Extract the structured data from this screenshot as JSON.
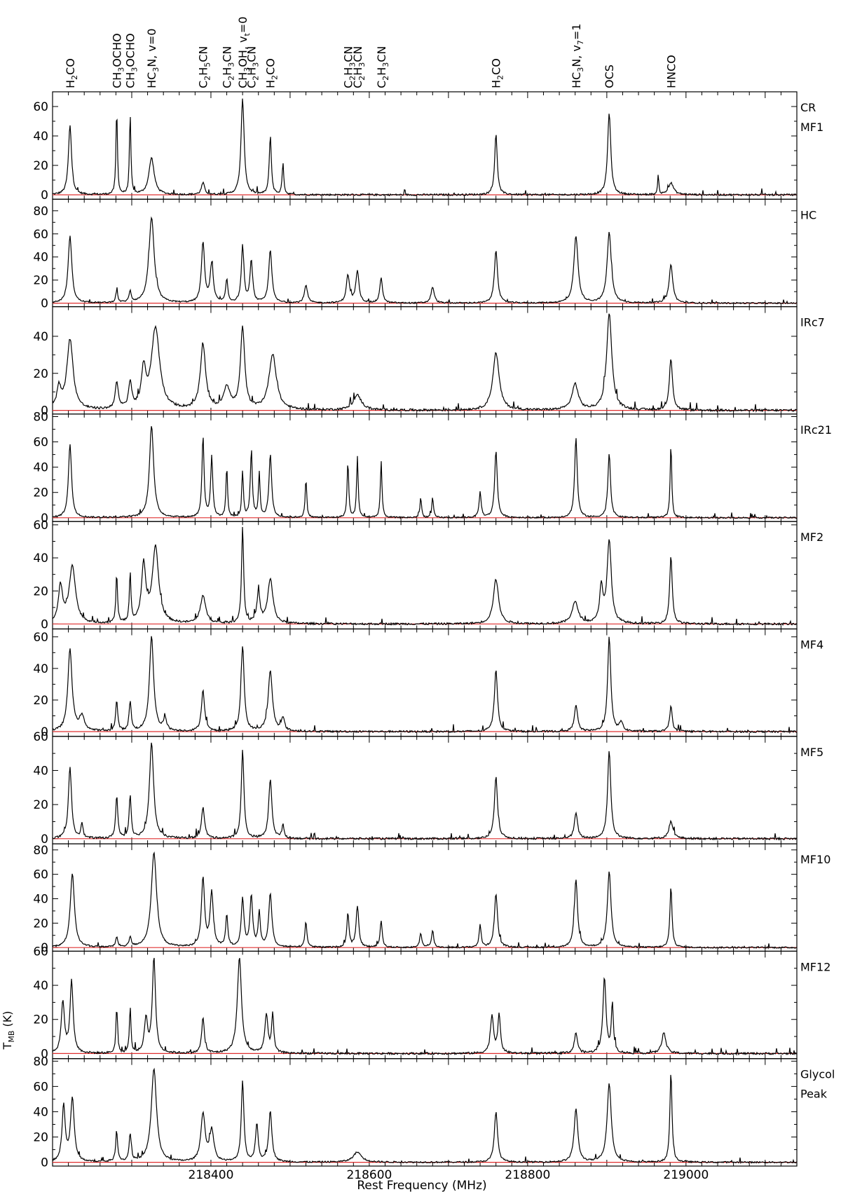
{
  "chart_data": {
    "type": "line",
    "xlabel": "Rest Frequency (MHz)",
    "ylabel_main": "T",
    "ylabel_sub": "MB",
    "ylabel_unit": " (K)",
    "xlim": [
      218200,
      219140
    ],
    "x_ticks_labeled": [
      {
        "value": 218400,
        "label": "218400"
      },
      {
        "value": 218600,
        "label": "218600"
      },
      {
        "value": 218800,
        "label": "218800"
      },
      {
        "value": 219000,
        "label": "219000"
      }
    ],
    "baseline_color": "#e03030",
    "line_color": "#000000",
    "line_ids": [
      {
        "label": "H2CO",
        "freq": 218222
      },
      {
        "label": "CH3OCHO",
        "freq": 218281
      },
      {
        "label": "CH3OCHO",
        "freq": 218298
      },
      {
        "label": "HC3N, v=0",
        "freq": 218325
      },
      {
        "label": "C2H5CN",
        "freq": 218390
      },
      {
        "label": "C2H3CN",
        "freq": 218420
      },
      {
        "label": "CH3OH, vt=0",
        "freq": 218440
      },
      {
        "label": "C2H3CN",
        "freq": 218451
      },
      {
        "label": "H2CO",
        "freq": 218475
      },
      {
        "label": "C2H3CN",
        "freq": 218573
      },
      {
        "label": "C2H3CN",
        "freq": 218585
      },
      {
        "label": "C2H3CN",
        "freq": 218615
      },
      {
        "label": "H2CO",
        "freq": 218760
      },
      {
        "label": "HC3N, v7=1",
        "freq": 218861
      },
      {
        "label": "OCS",
        "freq": 218903
      },
      {
        "label": "HNCO",
        "freq": 218981
      }
    ],
    "panels": [
      {
        "name": "CR",
        "name2": "MF1",
        "yticks": [
          0,
          20,
          40,
          60
        ],
        "ylim": [
          -3,
          70
        ],
        "peaks": [
          [
            218222,
            47,
            3
          ],
          [
            218281,
            58,
            1.4
          ],
          [
            218298,
            54,
            1.4
          ],
          [
            218325,
            25,
            5
          ],
          [
            218390,
            8,
            3
          ],
          [
            218440,
            65,
            3
          ],
          [
            218475,
            40,
            2
          ],
          [
            218491,
            22,
            1.5
          ],
          [
            218760,
            41,
            2.5
          ],
          [
            218903,
            56,
            3
          ],
          [
            218981,
            8,
            5
          ],
          [
            218965,
            15,
            1
          ]
        ]
      },
      {
        "name": "HC",
        "name2": "",
        "yticks": [
          0,
          20,
          40,
          60,
          80
        ],
        "ylim": [
          -3,
          90
        ],
        "peaks": [
          [
            218222,
            58,
            3.5
          ],
          [
            218281,
            10,
            2
          ],
          [
            218298,
            10,
            2
          ],
          [
            218325,
            74,
            5
          ],
          [
            218390,
            52,
            3
          ],
          [
            218401,
            33,
            3
          ],
          [
            218420,
            20,
            2
          ],
          [
            218440,
            48,
            2.5
          ],
          [
            218451,
            36,
            2.5
          ],
          [
            218475,
            46,
            3
          ],
          [
            218520,
            15,
            3
          ],
          [
            218573,
            24,
            3
          ],
          [
            218585,
            28,
            3
          ],
          [
            218615,
            22,
            2.5
          ],
          [
            218680,
            14,
            3
          ],
          [
            218760,
            46,
            3
          ],
          [
            218861,
            58,
            4
          ],
          [
            218903,
            61,
            4
          ],
          [
            218981,
            33,
            3.5
          ]
        ]
      },
      {
        "name": "IRc7",
        "name2": "",
        "yticks": [
          0,
          20,
          40
        ],
        "ylim": [
          -2,
          56
        ],
        "peaks": [
          [
            218208,
            11,
            4
          ],
          [
            218222,
            38,
            6
          ],
          [
            218281,
            14,
            3
          ],
          [
            218298,
            14,
            3
          ],
          [
            218315,
            20,
            4
          ],
          [
            218330,
            44,
            8
          ],
          [
            218390,
            35,
            5
          ],
          [
            218420,
            12,
            6
          ],
          [
            218440,
            44,
            4
          ],
          [
            218478,
            30,
            7
          ],
          [
            218585,
            8,
            8
          ],
          [
            218760,
            31,
            6
          ],
          [
            218860,
            14,
            6
          ],
          [
            218903,
            52,
            5
          ],
          [
            218981,
            28,
            3
          ]
        ]
      },
      {
        "name": "IRc21",
        "name2": "",
        "yticks": [
          0,
          20,
          40,
          60,
          80
        ],
        "ylim": [
          -3,
          82
        ],
        "peaks": [
          [
            218222,
            58,
            3
          ],
          [
            218325,
            73,
            4
          ],
          [
            218390,
            64,
            2
          ],
          [
            218401,
            48,
            2
          ],
          [
            218420,
            40,
            1.5
          ],
          [
            218440,
            36,
            1.5
          ],
          [
            218451,
            50,
            2
          ],
          [
            218461,
            35,
            1.5
          ],
          [
            218475,
            50,
            2.5
          ],
          [
            218520,
            30,
            1.5
          ],
          [
            218573,
            45,
            1.5
          ],
          [
            218585,
            48,
            1.5
          ],
          [
            218615,
            45,
            1.5
          ],
          [
            218665,
            16,
            1.5
          ],
          [
            218680,
            16,
            1.5
          ],
          [
            218740,
            20,
            2
          ],
          [
            218760,
            53,
            2.5
          ],
          [
            218861,
            63,
            2.5
          ],
          [
            218903,
            51,
            2.5
          ],
          [
            218981,
            58,
            1.5
          ]
        ]
      },
      {
        "name": "MF2",
        "name2": "",
        "yticks": [
          0,
          20,
          40,
          60
        ],
        "ylim": [
          -3,
          62
        ],
        "peaks": [
          [
            218210,
            22,
            4
          ],
          [
            218225,
            35,
            6
          ],
          [
            218281,
            30,
            1.5
          ],
          [
            218298,
            30,
            1.5
          ],
          [
            218315,
            35,
            4
          ],
          [
            218330,
            46,
            6
          ],
          [
            218390,
            17,
            5
          ],
          [
            218440,
            58,
            2
          ],
          [
            218460,
            18,
            3
          ],
          [
            218475,
            27,
            5
          ],
          [
            218760,
            27,
            5
          ],
          [
            218860,
            13,
            6
          ],
          [
            218893,
            22,
            3
          ],
          [
            218903,
            50,
            4
          ],
          [
            218981,
            41,
            2.5
          ]
        ]
      },
      {
        "name": "MF4",
        "name2": "",
        "yticks": [
          0,
          20,
          40,
          60
        ],
        "ylim": [
          -3,
          65
        ],
        "peaks": [
          [
            218222,
            52,
            4
          ],
          [
            218237,
            9,
            5
          ],
          [
            218281,
            19,
            2
          ],
          [
            218298,
            19,
            2
          ],
          [
            218325,
            60,
            4
          ],
          [
            218342,
            8,
            3
          ],
          [
            218390,
            26,
            3
          ],
          [
            218440,
            54,
            3
          ],
          [
            218475,
            38,
            4
          ],
          [
            218491,
            8,
            3
          ],
          [
            218760,
            39,
            3
          ],
          [
            218861,
            17,
            3
          ],
          [
            218903,
            60,
            3
          ],
          [
            218918,
            6,
            3
          ],
          [
            218981,
            16,
            2.5
          ]
        ]
      },
      {
        "name": "MF5",
        "name2": "",
        "yticks": [
          0,
          20,
          40,
          60
        ],
        "ylim": [
          -3,
          60
        ],
        "peaks": [
          [
            218222,
            42,
            3
          ],
          [
            218237,
            9,
            2
          ],
          [
            218281,
            25,
            2
          ],
          [
            218298,
            25,
            2
          ],
          [
            218325,
            56,
            4
          ],
          [
            218390,
            18,
            3
          ],
          [
            218440,
            52,
            2.5
          ],
          [
            218475,
            35,
            3
          ],
          [
            218491,
            8,
            2
          ],
          [
            218760,
            36,
            3
          ],
          [
            218861,
            15,
            3
          ],
          [
            218903,
            52,
            3
          ],
          [
            218981,
            10,
            4
          ]
        ]
      },
      {
        "name": "MF10",
        "name2": "",
        "yticks": [
          0,
          20,
          40,
          60,
          80
        ],
        "ylim": [
          -3,
          85
        ],
        "peaks": [
          [
            218225,
            60,
            4
          ],
          [
            218281,
            8,
            2
          ],
          [
            218298,
            8,
            2
          ],
          [
            218328,
            78,
            5
          ],
          [
            218390,
            56,
            3
          ],
          [
            218401,
            44,
            3
          ],
          [
            218420,
            26,
            2
          ],
          [
            218440,
            40,
            2.5
          ],
          [
            218451,
            42,
            2.5
          ],
          [
            218461,
            28,
            2
          ],
          [
            218475,
            44,
            3
          ],
          [
            218520,
            20,
            2
          ],
          [
            218573,
            28,
            2
          ],
          [
            218585,
            34,
            2.5
          ],
          [
            218615,
            22,
            2
          ],
          [
            218665,
            12,
            2
          ],
          [
            218680,
            14,
            2
          ],
          [
            218740,
            18,
            2
          ],
          [
            218760,
            44,
            3
          ],
          [
            218861,
            56,
            3
          ],
          [
            218903,
            62,
            3.5
          ],
          [
            218981,
            50,
            2
          ]
        ]
      },
      {
        "name": "MF12",
        "name2": "",
        "yticks": [
          0,
          20,
          40,
          60
        ],
        "ylim": [
          -3,
          60
        ],
        "peaks": [
          [
            218213,
            30,
            3
          ],
          [
            218224,
            42,
            3
          ],
          [
            218281,
            27,
            1.5
          ],
          [
            218298,
            27,
            1.5
          ],
          [
            218318,
            20,
            3
          ],
          [
            218328,
            56,
            3
          ],
          [
            218390,
            21,
            2.5
          ],
          [
            218436,
            56,
            4
          ],
          [
            218470,
            22,
            3
          ],
          [
            218478,
            23,
            2
          ],
          [
            218755,
            22,
            3
          ],
          [
            218764,
            22,
            2.5
          ],
          [
            218861,
            12,
            3
          ],
          [
            218897,
            44,
            3
          ],
          [
            218907,
            28,
            2
          ],
          [
            218972,
            12,
            4
          ]
        ]
      },
      {
        "name": "Glycol",
        "name2": "Peak",
        "yticks": [
          0,
          20,
          40,
          60,
          80
        ],
        "ylim": [
          -3,
          82
        ],
        "peaks": [
          [
            218214,
            44,
            3
          ],
          [
            218225,
            50,
            3.5
          ],
          [
            218281,
            22,
            2
          ],
          [
            218298,
            22,
            2
          ],
          [
            218328,
            74,
            5
          ],
          [
            218390,
            38,
            4
          ],
          [
            218401,
            24,
            4
          ],
          [
            218440,
            64,
            2.5
          ],
          [
            218458,
            30,
            2.5
          ],
          [
            218475,
            40,
            3
          ],
          [
            218585,
            8,
            8
          ],
          [
            218760,
            40,
            3
          ],
          [
            218861,
            42,
            3.5
          ],
          [
            218903,
            62,
            4
          ],
          [
            218981,
            72,
            2
          ]
        ]
      }
    ]
  }
}
